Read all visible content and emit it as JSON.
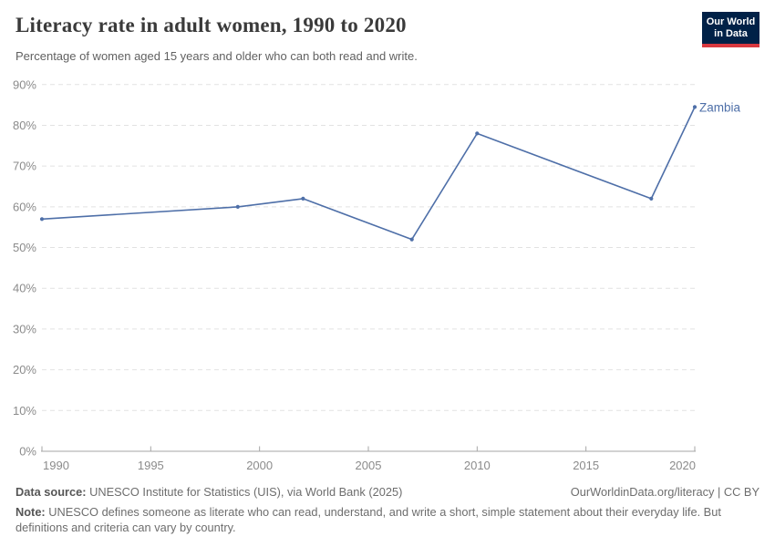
{
  "header": {
    "title": "Literacy rate in adult women, 1990 to 2020",
    "subtitle": "Percentage of women aged 15 years and older who can both read and write."
  },
  "logo": {
    "line1": "Our World",
    "line2": "in Data",
    "bg_color": "#002147",
    "accent_color": "#d8383f"
  },
  "chart_data": {
    "type": "line",
    "title": "Literacy rate in adult women, 1990 to 2020",
    "subtitle": "Percentage of women aged 15 years and older who can both read and write.",
    "series": [
      {
        "name": "Zambia",
        "color": "#4e6fa8",
        "x": [
          1990,
          1999,
          2002,
          2007,
          2010,
          2018,
          2020
        ],
        "y": [
          57,
          60,
          62,
          52,
          78,
          62,
          84.5
        ]
      }
    ],
    "xlabel": "",
    "ylabel": "",
    "xlim": [
      1990,
      2020
    ],
    "ylim": [
      0,
      90
    ],
    "xticks": [
      1990,
      1995,
      2000,
      2005,
      2010,
      2015,
      2020
    ],
    "yticks": [
      0,
      10,
      20,
      30,
      40,
      50,
      60,
      70,
      80,
      90
    ],
    "ytick_suffix": "%",
    "grid": "horizontal-dashed",
    "legend": "end-of-line-label",
    "colors": {
      "gridline": "#e2e2e2",
      "axis": "#a6a6a6",
      "tick_label": "#8b8b8b"
    }
  },
  "footer": {
    "source_label": "Data source:",
    "source_text": "UNESCO Institute for Statistics (UIS), via World Bank (2025)",
    "url": "OurWorldinData.org/literacy",
    "separator": " | ",
    "license": "CC BY",
    "note_label": "Note:",
    "note_text": "UNESCO defines someone as literate who can read, understand, and write a short, simple statement about their everyday life. But definitions and criteria can vary by country."
  }
}
